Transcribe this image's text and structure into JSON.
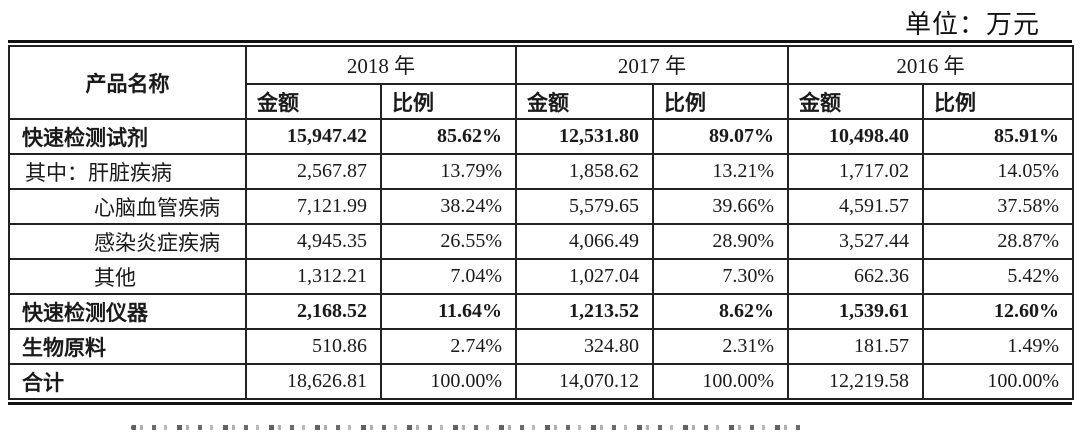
{
  "unit_label": "单位：万元",
  "table": {
    "header": {
      "product": "产品名称",
      "years": [
        "2018 年",
        "2017 年",
        "2016 年"
      ],
      "amount": "金额",
      "ratio": "比例"
    },
    "rows": [
      {
        "label": "快速检测试剂",
        "values": [
          "15,947.42",
          "85.62%",
          "12,531.80",
          "89.07%",
          "10,498.40",
          "85.91%"
        ]
      },
      {
        "label": "其中：肝脏疾病",
        "values": [
          "2,567.87",
          "13.79%",
          "1,858.62",
          "13.21%",
          "1,717.02",
          "14.05%"
        ]
      },
      {
        "label": "心脑血管疾病",
        "values": [
          "7,121.99",
          "38.24%",
          "5,579.65",
          "39.66%",
          "4,591.57",
          "37.58%"
        ]
      },
      {
        "label": "感染炎症疾病",
        "values": [
          "4,945.35",
          "26.55%",
          "4,066.49",
          "28.90%",
          "3,527.44",
          "28.87%"
        ]
      },
      {
        "label": "其他",
        "values": [
          "1,312.21",
          "7.04%",
          "1,027.04",
          "7.30%",
          "662.36",
          "5.42%"
        ]
      },
      {
        "label": "快速检测仪器",
        "values": [
          "2,168.52",
          "11.64%",
          "1,213.52",
          "8.62%",
          "1,539.61",
          "12.60%"
        ]
      },
      {
        "label": "生物原料",
        "values": [
          "510.86",
          "2.74%",
          "324.80",
          "2.31%",
          "181.57",
          "1.49%"
        ]
      },
      {
        "label": "合计",
        "values": [
          "18,626.81",
          "100.00%",
          "14,070.12",
          "100.00%",
          "12,219.58",
          "100.00%"
        ]
      }
    ]
  }
}
